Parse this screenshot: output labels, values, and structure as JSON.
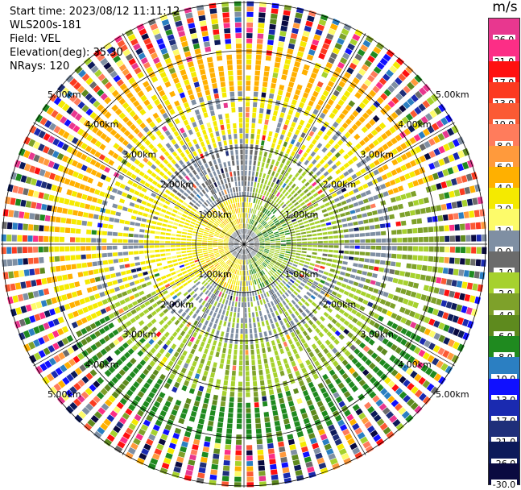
{
  "info": {
    "start_time": "Start time: 2023/08/12 11:11:12",
    "station": "WLS200s-181",
    "field": "Field: VEL",
    "elevation": "Elevation(deg): 35.30",
    "nrays": "NRays: 120"
  },
  "colorbar": {
    "title": "m/s",
    "bands": [
      {
        "label": "26.0",
        "color": "#e8378f"
      },
      {
        "label": "21.0",
        "color": "#fc2e86"
      },
      {
        "label": "17.0",
        "color": "#ff1010"
      },
      {
        "label": "13.0",
        "color": "#fc3a20"
      },
      {
        "label": "10.0",
        "color": "#fb5a34"
      },
      {
        "label": "8.0",
        "color": "#ff7c5c"
      },
      {
        "label": "6.0",
        "color": "#ff9a3c"
      },
      {
        "label": "4.0",
        "color": "#ffb000"
      },
      {
        "label": "2.0",
        "color": "#f4ea00"
      },
      {
        "label": "1.0",
        "color": "#fdfb6a"
      },
      {
        "label": "0.0",
        "color": "#7f8fa3"
      },
      {
        "label": "-1.0",
        "color": "#6b6b6b"
      },
      {
        "label": "-2.0",
        "color": "#a6d12e"
      },
      {
        "label": "-4.0",
        "color": "#7ea12a"
      },
      {
        "label": "-6.0",
        "color": "#5e8a1e"
      },
      {
        "label": "-8.0",
        "color": "#1f8a1f"
      },
      {
        "label": "-10.0",
        "color": "#2b7fc2"
      },
      {
        "label": "-13.0",
        "color": "#1010ff"
      },
      {
        "label": "-17.0",
        "color": "#1a2ab0"
      },
      {
        "label": "-21.0",
        "color": "#1f2f7a"
      },
      {
        "label": "-26.0",
        "color": "#0c1a5a"
      },
      {
        "label": "-30.0",
        "color": "#0a0a40"
      }
    ]
  },
  "chart_data": {
    "type": "heatmap",
    "title": "",
    "nrays": 120,
    "range_ring_labels": [
      "1.00km",
      "2.00km",
      "3.00km",
      "4.00km",
      "5.00km"
    ]
  }
}
